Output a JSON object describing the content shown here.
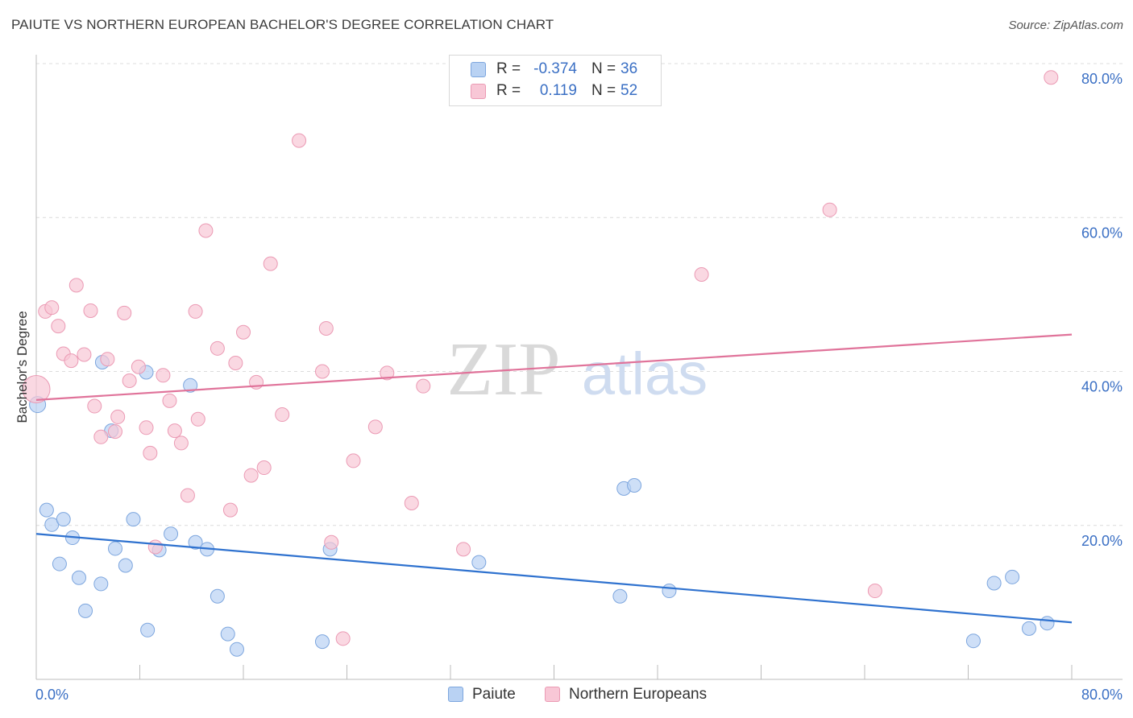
{
  "title": "PAIUTE VS NORTHERN EUROPEAN BACHELOR'S DEGREE CORRELATION CHART",
  "source": "Source: ZipAtlas.com",
  "watermark": {
    "part1": "ZIP",
    "part2": "atlas"
  },
  "legend_top": {
    "rows": [
      {
        "r_label": "R =",
        "r_value": "-0.374",
        "n_label": "N =",
        "n_value": "36"
      },
      {
        "r_label": "R =",
        "r_value": "0.119",
        "n_label": "N =",
        "n_value": "52"
      }
    ]
  },
  "legend_bottom": {
    "items": [
      "Paiute",
      "Northern Europeans"
    ]
  },
  "colors": {
    "paiute_fill": "#b9d2f3",
    "paiute_stroke": "#7da6de",
    "paiute_line": "#2f72cf",
    "ne_fill": "#f8c7d6",
    "ne_stroke": "#eb9ab4",
    "ne_line": "#e0739a",
    "tick_label": "#3a6fc4"
  },
  "chart_data": {
    "type": "scatter",
    "title": "PAIUTE VS NORTHERN EUROPEAN BACHELOR'S DEGREE CORRELATION CHART",
    "xlabel": "",
    "ylabel": "Bachelor's Degree",
    "xlim": [
      0,
      80
    ],
    "ylim": [
      0,
      80
    ],
    "x_tick_labels": [
      "0.0%",
      "80.0%"
    ],
    "y_ticks": [
      20,
      40,
      60,
      80
    ],
    "y_tick_labels": [
      "20.0%",
      "40.0%",
      "60.0%",
      "80.0%"
    ],
    "series": [
      {
        "name": "Paiute",
        "R": -0.374,
        "N": 36,
        "trend": {
          "x": [
            0,
            80
          ],
          "y": [
            18.9,
            7.4
          ]
        },
        "points": [
          {
            "x": 0.1,
            "y": 35.7,
            "r": 10
          },
          {
            "x": 0.8,
            "y": 22.0
          },
          {
            "x": 1.2,
            "y": 20.1
          },
          {
            "x": 1.8,
            "y": 15.0
          },
          {
            "x": 2.1,
            "y": 20.8
          },
          {
            "x": 2.8,
            "y": 18.4
          },
          {
            "x": 3.3,
            "y": 13.2
          },
          {
            "x": 3.8,
            "y": 8.9
          },
          {
            "x": 5.0,
            "y": 12.4
          },
          {
            "x": 5.1,
            "y": 41.2
          },
          {
            "x": 5.8,
            "y": 32.3
          },
          {
            "x": 6.1,
            "y": 17.0
          },
          {
            "x": 6.9,
            "y": 14.8
          },
          {
            "x": 7.5,
            "y": 20.8
          },
          {
            "x": 8.5,
            "y": 39.9
          },
          {
            "x": 8.6,
            "y": 6.4
          },
          {
            "x": 9.5,
            "y": 16.8
          },
          {
            "x": 10.4,
            "y": 18.9
          },
          {
            "x": 11.9,
            "y": 38.2
          },
          {
            "x": 12.3,
            "y": 17.8
          },
          {
            "x": 13.2,
            "y": 16.9
          },
          {
            "x": 14.0,
            "y": 10.8
          },
          {
            "x": 14.8,
            "y": 5.9
          },
          {
            "x": 15.5,
            "y": 3.9
          },
          {
            "x": 22.1,
            "y": 4.9
          },
          {
            "x": 22.7,
            "y": 16.9
          },
          {
            "x": 34.2,
            "y": 15.2
          },
          {
            "x": 45.1,
            "y": 10.8
          },
          {
            "x": 45.4,
            "y": 24.8
          },
          {
            "x": 46.2,
            "y": 25.2
          },
          {
            "x": 48.9,
            "y": 11.5
          },
          {
            "x": 72.4,
            "y": 5.0
          },
          {
            "x": 74.0,
            "y": 12.5
          },
          {
            "x": 75.4,
            "y": 13.3
          },
          {
            "x": 76.7,
            "y": 6.6
          },
          {
            "x": 78.1,
            "y": 7.3
          }
        ]
      },
      {
        "name": "Northern Europeans",
        "R": 0.119,
        "N": 52,
        "trend": {
          "x": [
            0,
            80
          ],
          "y": [
            36.3,
            44.8
          ]
        },
        "points": [
          {
            "x": 0.0,
            "y": 37.7,
            "r": 17
          },
          {
            "x": 0.7,
            "y": 47.8
          },
          {
            "x": 1.2,
            "y": 48.3
          },
          {
            "x": 1.7,
            "y": 45.9
          },
          {
            "x": 2.1,
            "y": 42.3
          },
          {
            "x": 2.7,
            "y": 41.4
          },
          {
            "x": 3.1,
            "y": 51.2
          },
          {
            "x": 3.7,
            "y": 42.2
          },
          {
            "x": 4.2,
            "y": 47.9
          },
          {
            "x": 4.5,
            "y": 35.5
          },
          {
            "x": 5.0,
            "y": 31.5
          },
          {
            "x": 5.5,
            "y": 41.6
          },
          {
            "x": 6.1,
            "y": 32.2
          },
          {
            "x": 6.3,
            "y": 34.1
          },
          {
            "x": 6.8,
            "y": 47.6
          },
          {
            "x": 7.2,
            "y": 38.8
          },
          {
            "x": 7.9,
            "y": 40.6
          },
          {
            "x": 8.5,
            "y": 32.7
          },
          {
            "x": 8.8,
            "y": 29.4
          },
          {
            "x": 9.2,
            "y": 17.2
          },
          {
            "x": 9.8,
            "y": 39.5
          },
          {
            "x": 10.3,
            "y": 36.2
          },
          {
            "x": 10.7,
            "y": 32.3
          },
          {
            "x": 11.2,
            "y": 30.7
          },
          {
            "x": 11.7,
            "y": 23.9
          },
          {
            "x": 12.3,
            "y": 47.8
          },
          {
            "x": 12.5,
            "y": 33.8
          },
          {
            "x": 13.1,
            "y": 58.3
          },
          {
            "x": 14.0,
            "y": 43.0
          },
          {
            "x": 15.0,
            "y": 22.0
          },
          {
            "x": 15.4,
            "y": 41.1
          },
          {
            "x": 16.0,
            "y": 45.1
          },
          {
            "x": 16.6,
            "y": 26.5
          },
          {
            "x": 17.0,
            "y": 38.6
          },
          {
            "x": 17.6,
            "y": 27.5
          },
          {
            "x": 18.1,
            "y": 54.0
          },
          {
            "x": 19.0,
            "y": 34.4
          },
          {
            "x": 20.3,
            "y": 70.0
          },
          {
            "x": 22.1,
            "y": 40.0
          },
          {
            "x": 22.4,
            "y": 45.6
          },
          {
            "x": 22.8,
            "y": 17.8
          },
          {
            "x": 23.7,
            "y": 5.3
          },
          {
            "x": 24.5,
            "y": 28.4
          },
          {
            "x": 26.2,
            "y": 32.8
          },
          {
            "x": 27.1,
            "y": 39.8
          },
          {
            "x": 29.0,
            "y": 22.9
          },
          {
            "x": 29.9,
            "y": 38.1
          },
          {
            "x": 33.0,
            "y": 16.9
          },
          {
            "x": 51.4,
            "y": 52.6
          },
          {
            "x": 61.3,
            "y": 61.0
          },
          {
            "x": 64.8,
            "y": 11.5
          },
          {
            "x": 78.4,
            "y": 78.2
          }
        ]
      }
    ]
  }
}
